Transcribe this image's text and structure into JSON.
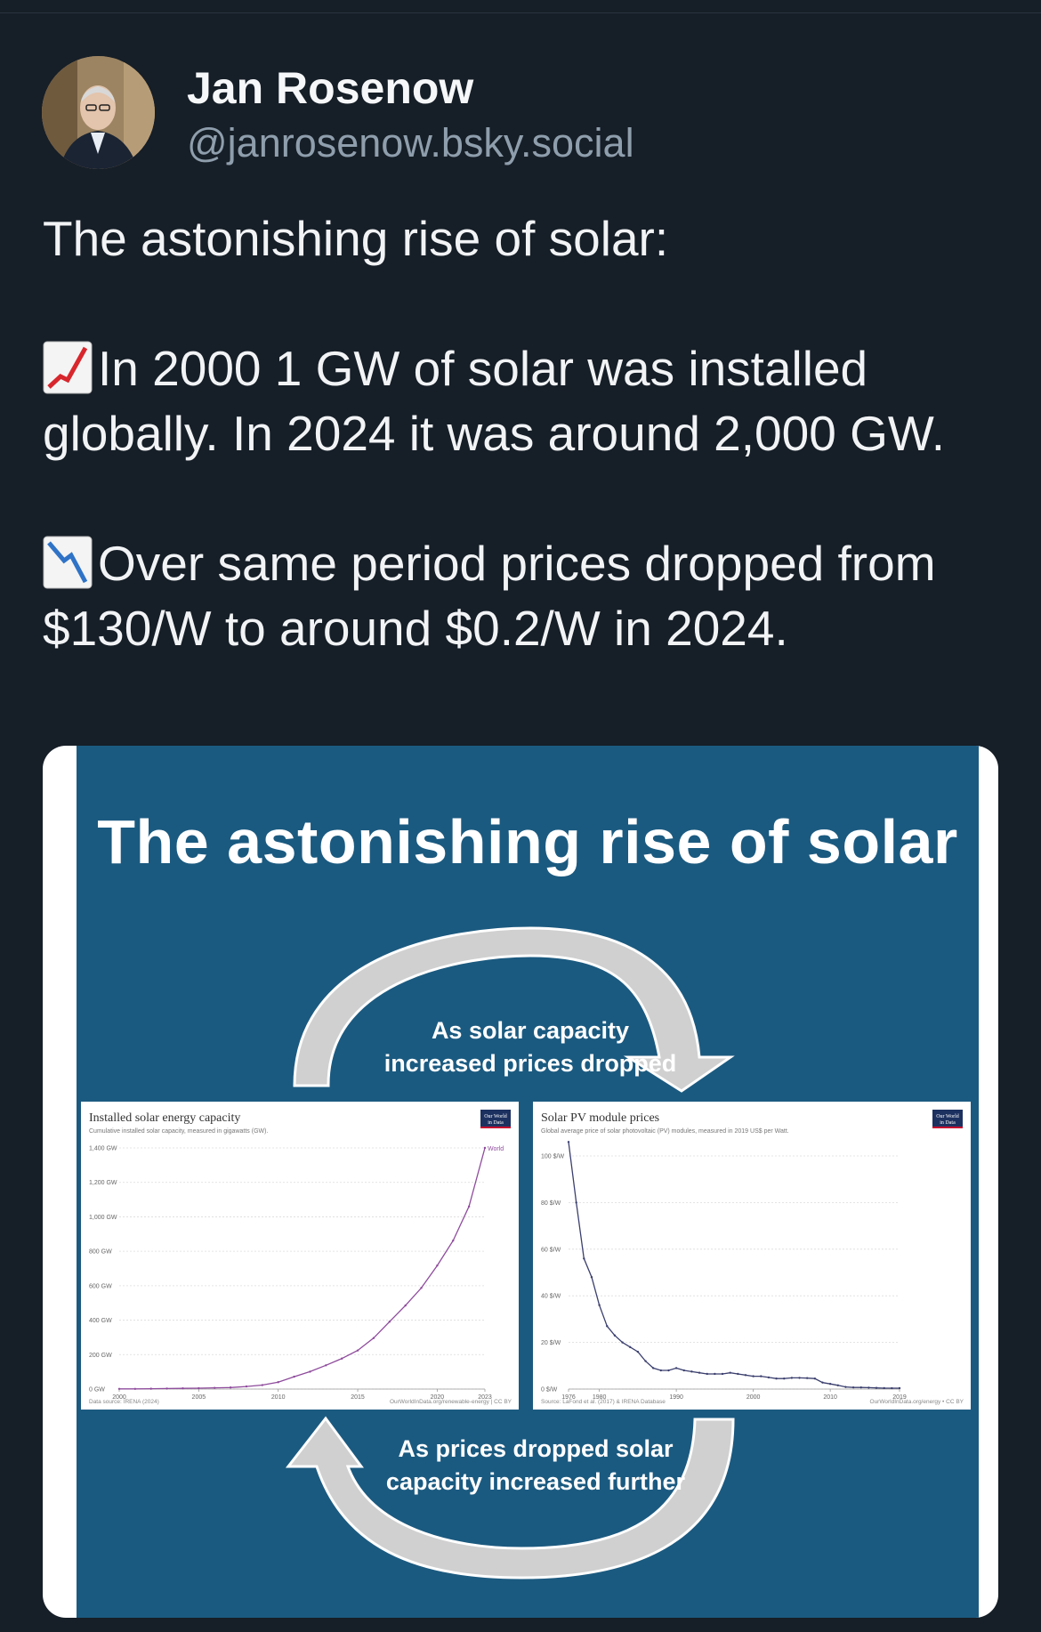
{
  "author": {
    "display_name": "Jan Rosenow",
    "handle": "@janrosenow.bsky.social"
  },
  "post": {
    "line1": "The astonishing rise of solar:",
    "para2": "In 2000 1 GW of solar was installed globally. In 2024 it was around 2,000 GW.",
    "para3": "Over same period prices dropped from $130/W to around $0.2/W in 2024.",
    "emoji_up": "chart-increasing-icon",
    "emoji_down": "chart-decreasing-icon"
  },
  "infographic": {
    "title": "The astonishing rise of solar",
    "caption_top": [
      "As solar capacity",
      "increased prices dropped"
    ],
    "caption_bottom": [
      "As prices dropped solar",
      "capacity increased further"
    ]
  },
  "colors": {
    "background": "#161e27",
    "infographic_bg": "#1b5a80",
    "arrow": "#d0d0d0",
    "capacity_line": "#8e4b9c",
    "price_line": "#3b3f6e",
    "owid_badge": "#1d3160",
    "owid_badge_accent": "#c8102e"
  },
  "chart_data": [
    {
      "type": "line",
      "title": "Installed solar energy capacity",
      "subtitle": "Cumulative installed solar capacity, measured in gigawatts (GW).",
      "badge": [
        "Our World",
        "in Data"
      ],
      "x_ticks": [
        "2000",
        "2005",
        "2010",
        "2015",
        "2020",
        "2023"
      ],
      "y_ticks": [
        "0 GW",
        "200 GW",
        "400 GW",
        "600 GW",
        "800 GW",
        "1,000 GW",
        "1,200 GW",
        "1,400 GW"
      ],
      "ylim": [
        0,
        1400
      ],
      "xlim": [
        2000,
        2023
      ],
      "series": [
        {
          "name": "World",
          "x": [
            2000,
            2001,
            2002,
            2003,
            2004,
            2005,
            2006,
            2007,
            2008,
            2009,
            2010,
            2011,
            2012,
            2013,
            2014,
            2015,
            2016,
            2017,
            2018,
            2019,
            2020,
            2021,
            2022,
            2023
          ],
          "values": [
            1,
            1,
            2,
            3,
            4,
            5,
            7,
            9,
            15,
            23,
            40,
            72,
            101,
            138,
            177,
            224,
            296,
            391,
            485,
            587,
            717,
            862,
            1060,
            1400
          ]
        }
      ],
      "footer_left": "Data source: IRENA (2024)",
      "footer_right": "OurWorldInData.org/renewable-energy | CC BY"
    },
    {
      "type": "line",
      "title": "Solar PV module prices",
      "subtitle": "Global average price of solar photovoltaic (PV) modules, measured in 2019 US$ per Watt.",
      "badge": [
        "Our World",
        "in Data"
      ],
      "x_ticks": [
        "1976",
        "1980",
        "1990",
        "2000",
        "2010",
        "2019"
      ],
      "y_ticks": [
        "0 $/W",
        "20 $/W",
        "40 $/W",
        "60 $/W",
        "80 $/W",
        "100 $/W"
      ],
      "ylim": [
        0,
        100
      ],
      "xlim": [
        1976,
        2019
      ],
      "series": [
        {
          "name": "",
          "x": [
            1976,
            1977,
            1978,
            1979,
            1980,
            1981,
            1982,
            1983,
            1984,
            1985,
            1986,
            1987,
            1988,
            1989,
            1990,
            1991,
            1992,
            1993,
            1994,
            1995,
            1996,
            1997,
            1998,
            1999,
            2000,
            2001,
            2002,
            2003,
            2004,
            2005,
            2006,
            2007,
            2008,
            2009,
            2010,
            2011,
            2012,
            2013,
            2014,
            2015,
            2016,
            2017,
            2018,
            2019
          ],
          "values": [
            106,
            80,
            56,
            48,
            36,
            27,
            23,
            20,
            18,
            16,
            12,
            9,
            8,
            8,
            9,
            8,
            7.5,
            7,
            6.5,
            6.5,
            6.5,
            7,
            6.5,
            6,
            5.5,
            5.5,
            5,
            4.5,
            4.5,
            4.8,
            4.8,
            4.7,
            4.5,
            2.8,
            2.2,
            1.6,
            0.9,
            0.7,
            0.7,
            0.6,
            0.5,
            0.4,
            0.37,
            0.38
          ]
        }
      ],
      "footer_left": "Source: LaFond et al. (2017) & IRENA Database",
      "footer_right": "OurWorldInData.org/energy • CC BY"
    }
  ]
}
